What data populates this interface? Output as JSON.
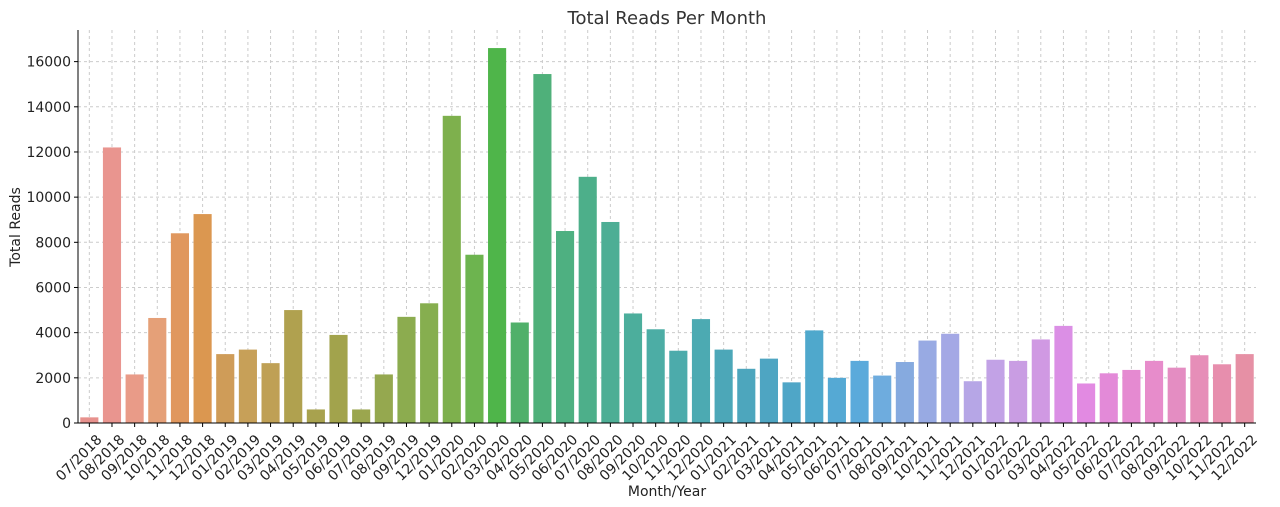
{
  "chart_data": {
    "type": "bar",
    "title": "Total Reads Per Month",
    "xlabel": "Month/Year",
    "ylabel": "Total Reads",
    "ylim": [
      0,
      17400
    ],
    "yticks": [
      0,
      2000,
      4000,
      6000,
      8000,
      10000,
      12000,
      14000,
      16000
    ],
    "grid": true,
    "categories": [
      "07/2018",
      "08/2018",
      "09/2018",
      "10/2018",
      "11/2018",
      "12/2018",
      "01/2019",
      "02/2019",
      "03/2019",
      "04/2019",
      "05/2019",
      "06/2019",
      "07/2019",
      "08/2019",
      "09/2019",
      "12/2019",
      "01/2020",
      "02/2020",
      "03/2020",
      "04/2020",
      "05/2020",
      "06/2020",
      "07/2020",
      "08/2020",
      "09/2020",
      "10/2020",
      "11/2020",
      "12/2020",
      "01/2021",
      "02/2021",
      "03/2021",
      "04/2021",
      "05/2021",
      "06/2021",
      "07/2021",
      "08/2021",
      "09/2021",
      "10/2021",
      "11/2021",
      "12/2021",
      "01/2022",
      "02/2022",
      "03/2022",
      "04/2022",
      "05/2022",
      "06/2022",
      "07/2022",
      "08/2022",
      "09/2022",
      "10/2022",
      "11/2022",
      "12/2022"
    ],
    "values": [
      250,
      12200,
      2150,
      4650,
      8400,
      9250,
      3050,
      3250,
      2650,
      5000,
      600,
      3900,
      600,
      2150,
      4700,
      5300,
      13600,
      7450,
      16600,
      4450,
      15450,
      8500,
      10900,
      8900,
      4850,
      4150,
      3200,
      4600,
      3250,
      2400,
      2850,
      1800,
      4100,
      2000,
      2750,
      2100,
      2700,
      3650,
      3950,
      1850,
      2800,
      2750,
      3700,
      4300,
      1750,
      2200,
      2350,
      2750,
      2450,
      3000,
      2600,
      3050
    ],
    "colors": [
      "#e7918d",
      "#e9958f",
      "#e99b88",
      "#e5a078",
      "#e0975e",
      "#db9750",
      "#cf9c58",
      "#c7a058",
      "#bfa055",
      "#b0a14f",
      "#a8a24e",
      "#a2a34c",
      "#9ba64e",
      "#95a84f",
      "#8cac4f",
      "#86ae4f",
      "#7eb04d",
      "#6db44f",
      "#4fb54a",
      "#50b06a",
      "#4fb07a",
      "#4eb081",
      "#4daf8a",
      "#4dae95",
      "#4cae9c",
      "#4cada5",
      "#4cabab",
      "#4caab2",
      "#4ca7b8",
      "#4da6bd",
      "#4ea5c2",
      "#4fa6c7",
      "#4fa8cc",
      "#55a9d4",
      "#5baadb",
      "#6eacde",
      "#86aadf",
      "#98aae3",
      "#a4a8e5",
      "#b6a6e6",
      "#c2a2e6",
      "#c99de3",
      "#d099e3",
      "#db8fe5",
      "#e28ae2",
      "#e38ad8",
      "#e58ad1",
      "#e78ccb",
      "#e48dc2",
      "#e68eb8",
      "#e78ead",
      "#e690a5"
    ]
  }
}
